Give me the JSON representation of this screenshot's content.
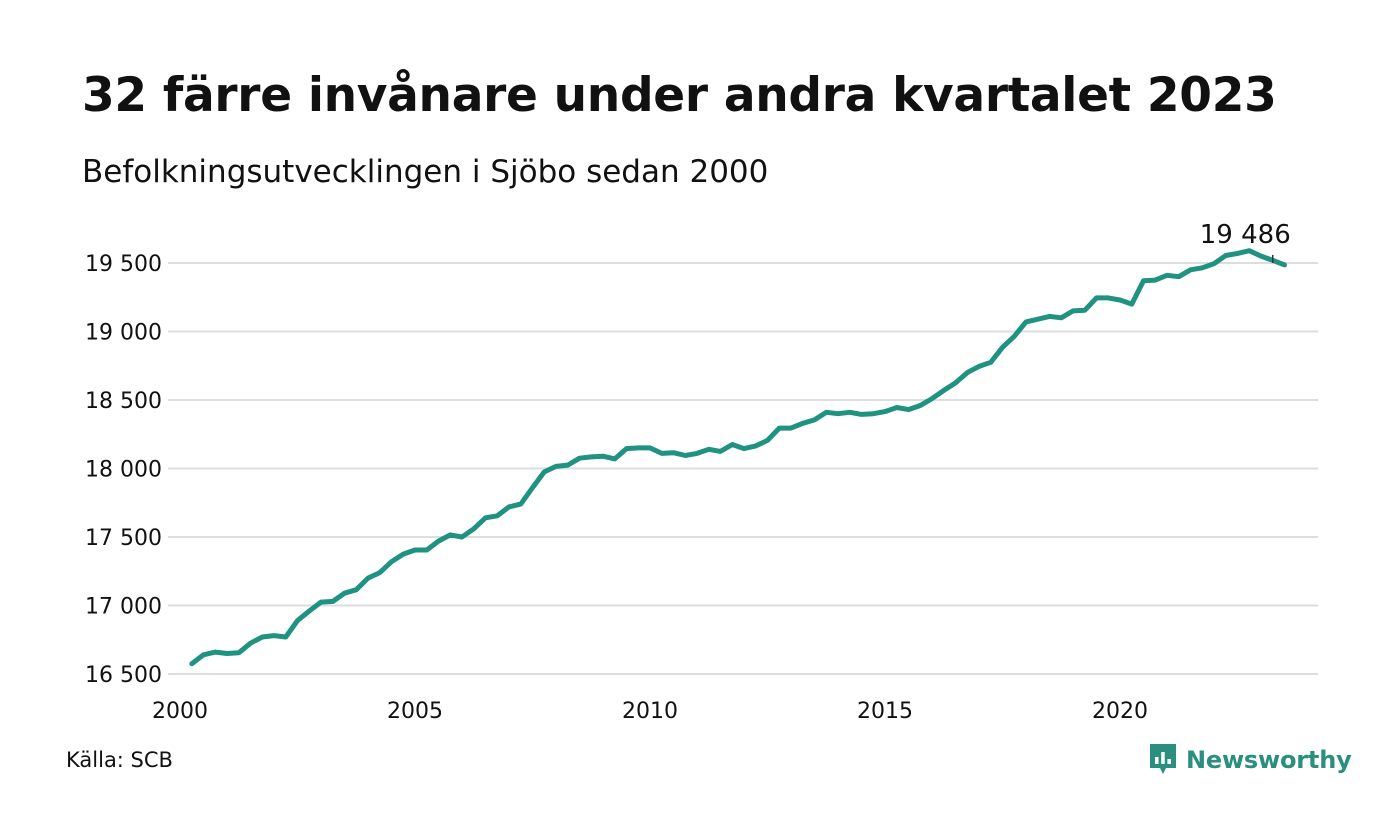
{
  "title": "32 färre invånare under andra kvartalet 2023",
  "subtitle": "Befolkningsutvecklingen i Sjöbo sedan 2000",
  "source": "Källa: SCB",
  "brand": {
    "name": "Newsworthy",
    "logo_icon": "bar-chart-speech-bubble-icon",
    "color": "#2a8f7e"
  },
  "colors": {
    "line": "#1f9281",
    "grid": "#dddddd",
    "text": "#111111"
  },
  "chart_data": {
    "type": "line",
    "title": "32 färre invånare under andra kvartalet 2023",
    "subtitle": "Befolkningsutvecklingen i Sjöbo sedan 2000",
    "xlabel": "",
    "ylabel": "",
    "x_ticks": [
      2000,
      2005,
      2010,
      2015,
      2020
    ],
    "y_ticks": [
      16500,
      17000,
      17500,
      18000,
      18500,
      19000,
      19500
    ],
    "y_tick_labels": [
      "16 500",
      "17 000",
      "17 500",
      "18 000",
      "18 500",
      "19 000",
      "19 500"
    ],
    "xlim": [
      2000,
      2024.25
    ],
    "ylim": [
      16500,
      19560
    ],
    "grid": "horizontal",
    "legend": "none",
    "annotation": {
      "text": "19 486",
      "x": 2023.25,
      "y": 19486
    },
    "series": [
      {
        "x_start": 2000.25,
        "x_step": 0.25,
        "values": [
          16575,
          16640,
          16660,
          16650,
          16655,
          16725,
          16770,
          16780,
          16770,
          16890,
          16960,
          17025,
          17030,
          17090,
          17115,
          17200,
          17240,
          17320,
          17375,
          17405,
          17405,
          17470,
          17515,
          17500,
          17560,
          17640,
          17655,
          17720,
          17740,
          17860,
          17975,
          18015,
          18025,
          18075,
          18085,
          18090,
          18070,
          18145,
          18150,
          18150,
          18110,
          18115,
          18095,
          18110,
          18140,
          18125,
          18175,
          18145,
          18165,
          18205,
          18295,
          18295,
          18330,
          18355,
          18410,
          18400,
          18410,
          18395,
          18400,
          18415,
          18445,
          18430,
          18460,
          18510,
          18570,
          18625,
          18700,
          18745,
          18775,
          18885,
          18965,
          19070,
          19090,
          19110,
          19100,
          19150,
          19155,
          19245,
          19245,
          19230,
          19200,
          19370,
          19375,
          19410,
          19400,
          19450,
          19465,
          19495,
          19555,
          19570,
          19590,
          19550,
          19520,
          19486
        ]
      }
    ]
  }
}
